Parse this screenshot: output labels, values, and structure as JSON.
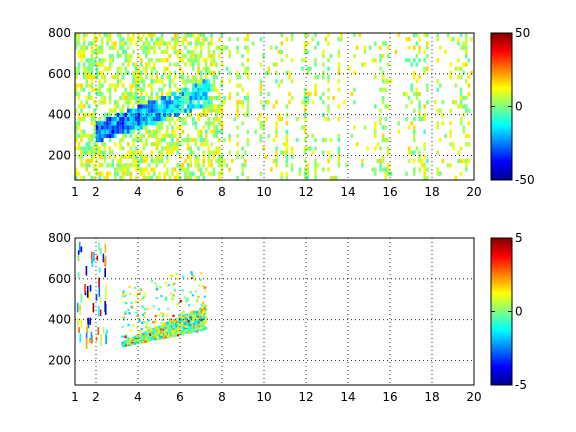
{
  "chart_data": [
    {
      "type": "heatmap",
      "title": "",
      "xlabel": "",
      "ylabel": "",
      "xlim": [
        1,
        20
      ],
      "ylim": [
        80,
        800
      ],
      "x_ticks": [
        "1",
        "2",
        "4",
        "6",
        "8",
        "10",
        "12",
        "14",
        "16",
        "18",
        "20"
      ],
      "y_ticks": [
        "200",
        "400",
        "600",
        "800"
      ],
      "grid": true,
      "colorbar": {
        "range": [
          -50,
          50
        ],
        "ticks": [
          "50",
          "0",
          "-50"
        ],
        "colormap": "jet"
      },
      "dominant_color": "#a6ff59",
      "description_of_regions": [
        {
          "x": [
            1,
            8
          ],
          "y": [
            80,
            800
          ],
          "density": "dense",
          "typical_value": 0
        },
        {
          "x": [
            8,
            20
          ],
          "y": [
            80,
            800
          ],
          "density": "sparse columns",
          "typical_value": 0
        },
        {
          "x": [
            2,
            7
          ],
          "y": [
            300,
            500
          ],
          "density": "dense diagonal band",
          "typical_value": -25
        }
      ]
    },
    {
      "type": "heatmap",
      "title": "",
      "xlabel": "",
      "ylabel": "",
      "xlim": [
        1,
        20
      ],
      "ylim": [
        80,
        800
      ],
      "x_ticks": [
        "1",
        "2",
        "4",
        "6",
        "8",
        "10",
        "12",
        "14",
        "16",
        "18",
        "20"
      ],
      "y_ticks": [
        "200",
        "400",
        "600",
        "800"
      ],
      "grid": true,
      "colorbar": {
        "range": [
          -5,
          5
        ],
        "ticks": [
          "5",
          "0",
          "-5"
        ],
        "colormap": "jet"
      },
      "description_of_regions": [
        {
          "x": [
            1,
            2.5
          ],
          "y": [
            300,
            800
          ],
          "density": "sparse vertical streaks",
          "typical_value": 0
        },
        {
          "x": [
            3.2,
            7.2
          ],
          "y": [
            260,
            620
          ],
          "density": "dense diagonal band",
          "typical_value": 0
        }
      ]
    }
  ]
}
